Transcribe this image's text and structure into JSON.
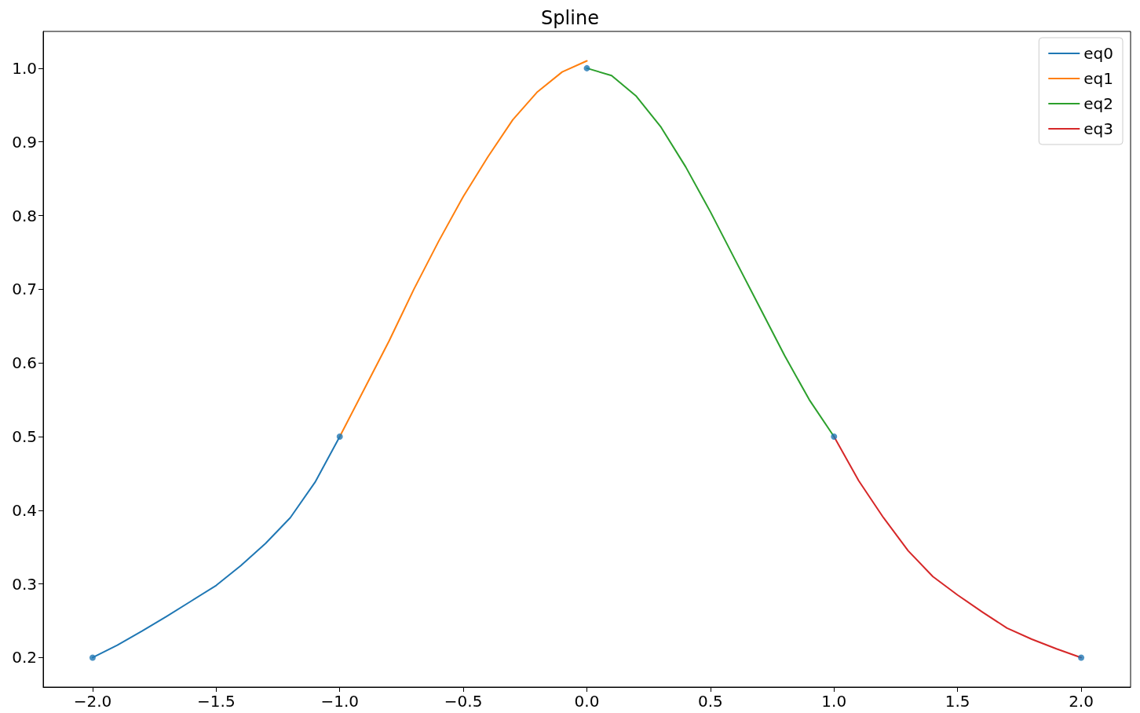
{
  "chart_data": {
    "type": "line",
    "title": "Spline",
    "series": [
      {
        "name": "eq0",
        "color": "#1f77b4",
        "marker": "none",
        "x": [
          -2,
          -1.9,
          -1.8,
          -1.7,
          -1.6,
          -1.5,
          -1.4,
          -1.3,
          -1.2,
          -1.1,
          -1
        ],
        "values": [
          0.2,
          0.217,
          0.236,
          0.256,
          0.277,
          0.298,
          0.325,
          0.355,
          0.39,
          0.438,
          0.5
        ]
      },
      {
        "name": "eq1",
        "color": "#ff7f0e",
        "marker": "none",
        "x": [
          -1,
          -0.9,
          -0.8,
          -0.7,
          -0.6,
          -0.5,
          -0.4,
          -0.3,
          -0.2,
          -0.1,
          0
        ],
        "values": [
          0.5,
          0.565,
          0.63,
          0.7,
          0.765,
          0.826,
          0.88,
          0.93,
          0.968,
          0.995,
          1.01
        ]
      },
      {
        "name": "eq2",
        "color": "#2ca02c",
        "marker": "none",
        "x": [
          0,
          0.1,
          0.2,
          0.3,
          0.4,
          0.5,
          0.6,
          0.7,
          0.8,
          0.9,
          1
        ],
        "values": [
          1.0,
          0.99,
          0.962,
          0.92,
          0.866,
          0.805,
          0.74,
          0.675,
          0.61,
          0.55,
          0.5
        ]
      },
      {
        "name": "eq3",
        "color": "#d62728",
        "marker": "none",
        "x": [
          1,
          1.1,
          1.2,
          1.3,
          1.4,
          1.5,
          1.6,
          1.7,
          1.8,
          1.9,
          2
        ],
        "values": [
          0.5,
          0.44,
          0.39,
          0.345,
          0.31,
          0.285,
          0.262,
          0.24,
          0.225,
          0.212,
          0.2
        ]
      },
      {
        "type": "scatter",
        "color": "#1f77b4",
        "marker": "circle",
        "x": [
          -2,
          -1,
          0,
          1,
          2
        ],
        "values": [
          0.2,
          0.5,
          1.0,
          0.5,
          0.2
        ]
      }
    ],
    "xlim": [
      -2.2,
      2.2
    ],
    "xticks": [
      {
        "value": -2,
        "label": "−2.0"
      },
      {
        "value": -1.5,
        "label": "−1.5"
      },
      {
        "value": -1,
        "label": "−1.0"
      },
      {
        "value": -0.5,
        "label": "−0.5"
      },
      {
        "value": 0,
        "label": "0.0"
      },
      {
        "value": 0.5,
        "label": "0.5"
      },
      {
        "value": 1,
        "label": "1.0"
      },
      {
        "value": 1.5,
        "label": "1.5"
      },
      {
        "value": 2,
        "label": "2.0"
      }
    ],
    "ylim": [
      0.16,
      1.05
    ],
    "yticks": [
      {
        "value": 0.2,
        "label": "0.2"
      },
      {
        "value": 0.3,
        "label": "0.3"
      },
      {
        "value": 0.4,
        "label": "0.4"
      },
      {
        "value": 0.5,
        "label": "0.5"
      },
      {
        "value": 0.6,
        "label": "0.6"
      },
      {
        "value": 0.7,
        "label": "0.7"
      },
      {
        "value": 0.8,
        "label": "0.8"
      },
      {
        "value": 0.9,
        "label": "0.9"
      },
      {
        "value": 1.0,
        "label": "1.0"
      }
    ],
    "legend": "top right"
  }
}
